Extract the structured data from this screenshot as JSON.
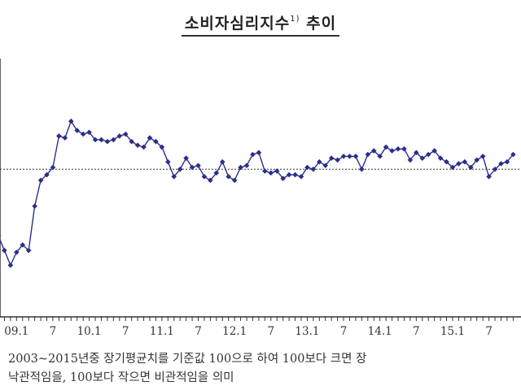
{
  "title": {
    "main": "소비자심리지수",
    "footnote_mark": "1)",
    "suffix": "추이"
  },
  "notes": {
    "line1": "2003~2015년중 장기평균치를 기준값 100으로 하여 100보다 크면 장",
    "line2": "낙관적임을, 100보다 작으면 비관적임을 의미"
  },
  "chart_data": {
    "type": "line",
    "title": "소비자심리지수1) 추이",
    "xlabel": "",
    "ylabel": "",
    "ylim": [
      60,
      130
    ],
    "reference_line": 100,
    "line_color": "#2b2f8a",
    "x_tick_labels": [
      "09.1",
      "7",
      "10.1",
      "7",
      "11.1",
      "7",
      "12.1",
      "7",
      "13.1",
      "7",
      "14.1",
      "7",
      "15.1",
      "7"
    ],
    "x": [
      "2008.10",
      "2008.11",
      "2008.12",
      "2009.01",
      "2009.02",
      "2009.03",
      "2009.04",
      "2009.05",
      "2009.06",
      "2009.07",
      "2009.08",
      "2009.09",
      "2009.10",
      "2009.11",
      "2009.12",
      "2010.01",
      "2010.02",
      "2010.03",
      "2010.04",
      "2010.05",
      "2010.06",
      "2010.07",
      "2010.08",
      "2010.09",
      "2010.10",
      "2010.11",
      "2010.12",
      "2011.01",
      "2011.02",
      "2011.03",
      "2011.04",
      "2011.05",
      "2011.06",
      "2011.07",
      "2011.08",
      "2011.09",
      "2011.10",
      "2011.11",
      "2011.12",
      "2012.01",
      "2012.02",
      "2012.03",
      "2012.04",
      "2012.05",
      "2012.06",
      "2012.07",
      "2012.08",
      "2012.09",
      "2012.10",
      "2012.11",
      "2012.12",
      "2013.01",
      "2013.02",
      "2013.03",
      "2013.04",
      "2013.05",
      "2013.06",
      "2013.07",
      "2013.08",
      "2013.09",
      "2013.10",
      "2013.11",
      "2013.12",
      "2014.01",
      "2014.02",
      "2014.03",
      "2014.04",
      "2014.05",
      "2014.06",
      "2014.07",
      "2014.08",
      "2014.09",
      "2014.10",
      "2014.11",
      "2014.12",
      "2015.01",
      "2015.02",
      "2015.03",
      "2015.04",
      "2015.05",
      "2015.06",
      "2015.07",
      "2015.08",
      "2015.09",
      "2015.10",
      "2015.11"
    ],
    "values": [
      82,
      78,
      74,
      77.5,
      79.5,
      78,
      90,
      97,
      98.5,
      100.5,
      109,
      108.5,
      113,
      110.5,
      109.5,
      110,
      108,
      108,
      107.5,
      108,
      109,
      109.5,
      107.5,
      106.5,
      106,
      108.5,
      107.5,
      106,
      102,
      98,
      100,
      103,
      100.5,
      101,
      98,
      97,
      99,
      102,
      98,
      97,
      100.5,
      101,
      104,
      104.5,
      99.5,
      99,
      99.5,
      97.5,
      98.5,
      98.5,
      98,
      100.5,
      100,
      102,
      101,
      103,
      102.5,
      103.5,
      103.5,
      103.5,
      100,
      104,
      105,
      103.5,
      106,
      105,
      105.5,
      105.5,
      102.5,
      104.5,
      103,
      104,
      105,
      103,
      102,
      100.5,
      101.5,
      102,
      100.5,
      102.5,
      103.5,
      98,
      100,
      101.5,
      102,
      104
    ]
  }
}
